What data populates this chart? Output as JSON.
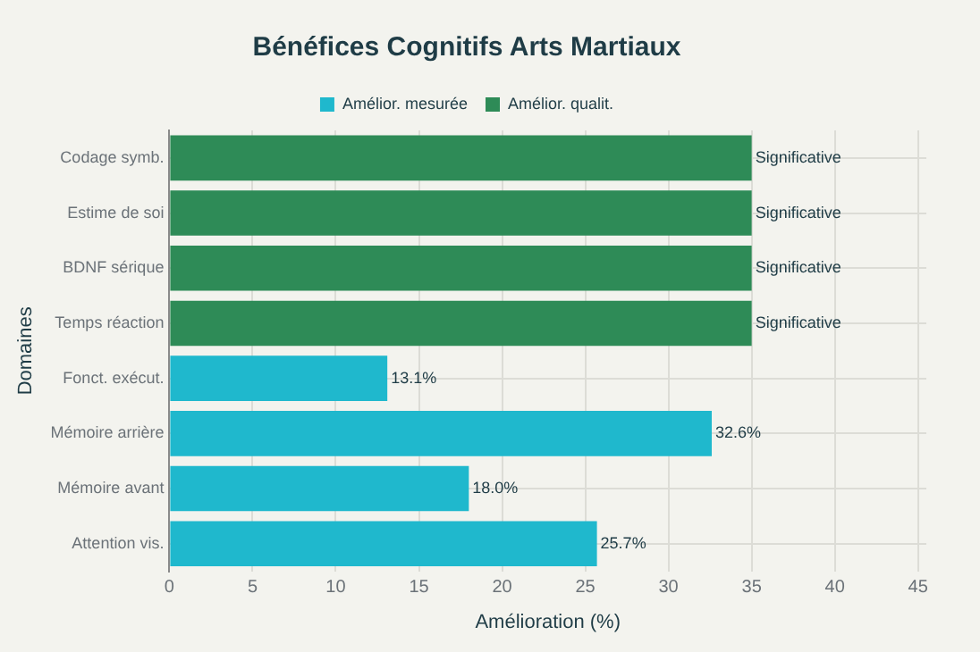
{
  "chart_data": {
    "type": "bar",
    "orientation": "horizontal",
    "title": "Bénéfices Cognitifs Arts Martiaux",
    "xlabel": "Amélioration (%)",
    "ylabel": "Domaines",
    "categories": [
      "Codage symb.",
      "Estime de soi",
      "BDNF sérique",
      "Temps réaction",
      "Fonct. exécut.",
      "Mémoire arrière",
      "Mémoire avant",
      "Attention vis."
    ],
    "series": [
      {
        "name": "Amélior. mesurée",
        "color": "#1fb8cd",
        "values": [
          null,
          null,
          null,
          null,
          13.1,
          32.6,
          18.0,
          25.7
        ],
        "value_labels": [
          null,
          null,
          null,
          null,
          "13.1%",
          "32.6%",
          "18.0%",
          "25.7%"
        ]
      },
      {
        "name": "Amélior. qualit.",
        "color": "#2e8b57",
        "values": [
          35,
          35,
          35,
          35,
          null,
          null,
          null,
          null
        ],
        "value_labels": [
          "Significative",
          "Significative",
          "Significative",
          "Significative",
          null,
          null,
          null,
          null
        ]
      }
    ],
    "xlim": [
      0,
      45.5
    ],
    "xticks": [
      0,
      5,
      10,
      15,
      20,
      25,
      30,
      35,
      40,
      45
    ],
    "grid": true,
    "legend": "top"
  }
}
